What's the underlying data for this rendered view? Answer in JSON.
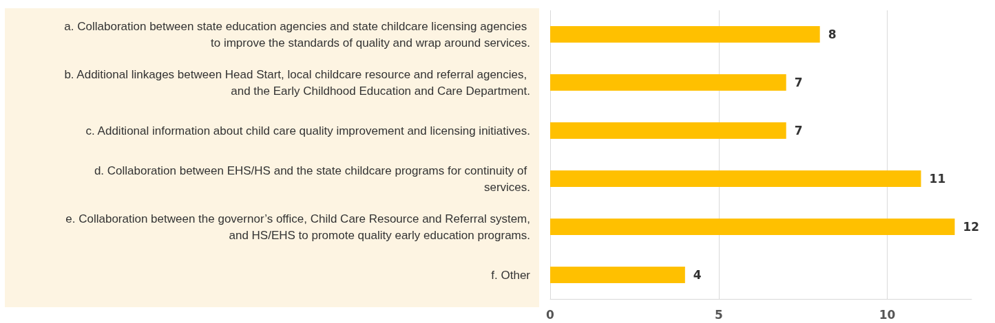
{
  "chart_data": {
    "type": "bar",
    "orientation": "horizontal",
    "categories": [
      "a. Collaboration between state education agencies and state childcare licensing agencies to improve the standards of quality and wrap around services.",
      "b. Additional linkages between Head Start, local childcare resource and referral agencies, and the Early Childhood Education and Care Department.",
      "c. Additional information about child care quality improvement and licensing initiatives.",
      "d. Collaboration between EHS/HS and the state childcare programs for continuity of services.",
      "e. Collaboration between the governor’s office, Child Care Resource and Referral system, and HS/EHS to promote quality early education programs.",
      "f. Other"
    ],
    "values": [
      8,
      7,
      7,
      11,
      12,
      4
    ],
    "color": "#ffc000",
    "xlim": [
      0,
      12.5
    ],
    "xticks": [
      0,
      5,
      10
    ],
    "grid": "x",
    "data_labels": true
  }
}
